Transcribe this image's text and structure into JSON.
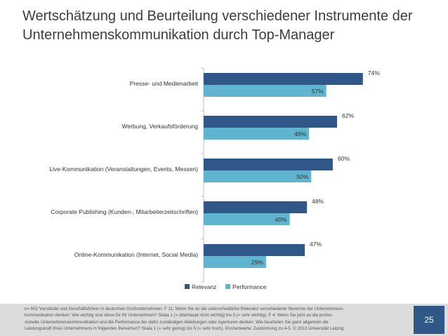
{
  "slide": {
    "title_lines": [
      "Wertschätzung und Beurteilung verschiedener Instrumente der",
      "Unternehmenskommunikation durch Top-Manager"
    ],
    "footnote_lines": [
      "n= 602 Vorstände und Geschäftsführer in deutschen Großunternehmen.  F 11: Wenn Sie an die unterschiedliche Relevanz verschiedener Bereiche der Unternehmens-",
      "kommunikation denken: Wie wichtig sind diese für Ihr Unternehmen? Skala 1 (= überhaupt nicht wichtig) bis 5 (= sehr wichtig). F 4: Wenn Sie jetzt an die profes-",
      "sionelle Unternehmenskommunikation und die Performance der dafür zuständigen Abteilungen oder Agenturen denken: Wie beurteilen Sie ganz allgemein die",
      "Leistungskraft Ihres Unternehmens in folgenden Bereichen? Skala 1 (= sehr gering) bis 5 (= sehr hoch). Prozentwerte: Zustimmung zu 4-5. © 2013 Universität Leipzig."
    ],
    "page_number": "25"
  },
  "chart_data": {
    "type": "bar",
    "orientation": "horizontal",
    "categories": [
      "Presse- und Medienarbeit",
      "Werbung, Verkaufsförderung",
      "Live-Kommunikation (Veranstaltungen, Events, Messen)",
      "Corporate Publishing (Kunden-, Mitarbeiterzeitschriften)",
      "Online-Kommunikation (Internet, Social Media)"
    ],
    "series": [
      {
        "name": "Relevanz",
        "values": [
          74,
          62,
          60,
          48,
          47
        ],
        "labels": [
          "74%",
          "62%",
          "60%",
          "48%",
          "47%"
        ],
        "color": "#2f5888"
      },
      {
        "name": "Performance",
        "values": [
          57,
          49,
          50,
          40,
          29
        ],
        "labels": [
          "57%",
          "49%",
          "50%",
          "40%",
          "29%"
        ],
        "color": "#5fb4cf"
      }
    ],
    "xlim": [
      0,
      80
    ],
    "grid": false,
    "legend": "bottom"
  }
}
